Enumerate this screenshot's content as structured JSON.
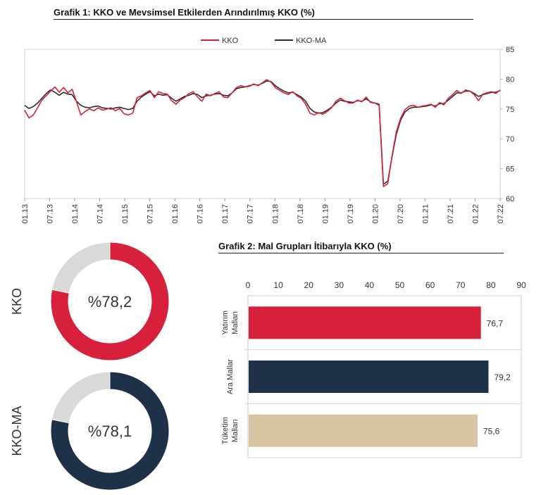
{
  "chart1_title": "Grafik 1: KKO ve Mevsimsel Etkilerden Arındırılmış KKO (%)",
  "chart2_title": "Grafik 2: Mal Grupları İtibarıyla KKO (%)",
  "colors": {
    "kko": "#d6203c",
    "kko_ma": "#2b2b2b",
    "navy": "#1f3148",
    "beige": "#d8c4a0",
    "gray": "#d9d9d9"
  },
  "chart_data": [
    {
      "type": "line",
      "title": "Grafik 1: KKO ve Mevsimsel Etkilerden Arındırılmış KKO (%)",
      "ylim": [
        60,
        85
      ],
      "yticks": [
        60,
        65,
        70,
        75,
        80,
        85
      ],
      "xtick_labels": [
        "01.13",
        "07.13",
        "01.14",
        "07.14",
        "01.15",
        "07.15",
        "01.16",
        "07.16",
        "01.17",
        "07.17",
        "01.18",
        "07.18",
        "01.19",
        "07.19",
        "01.20",
        "07.20",
        "01.21",
        "07.21",
        "01.22",
        "07.22"
      ],
      "legend_position": "top-center",
      "series": [
        {
          "name": "KKO",
          "color": "#d6203c",
          "values": [
            74.8,
            73.5,
            74.0,
            75.2,
            76.5,
            77.2,
            78.0,
            78.7,
            77.8,
            78.6,
            77.7,
            78.3,
            76.2,
            74.0,
            74.6,
            75.0,
            74.7,
            75.2,
            74.8,
            75.0,
            75.2,
            74.7,
            75.1,
            74.2,
            74.0,
            74.3,
            76.9,
            77.2,
            77.7,
            78.1,
            76.9,
            77.9,
            77.6,
            77.5,
            76.4,
            75.8,
            76.5,
            76.9,
            77.6,
            77.9,
            77.0,
            76.3,
            77.5,
            77.2,
            77.6,
            77.9,
            77.0,
            76.9,
            77.7,
            78.6,
            78.9,
            78.7,
            78.8,
            79.2,
            78.9,
            79.4,
            79.9,
            79.5,
            78.6,
            78.1,
            77.7,
            77.4,
            77.9,
            77.2,
            76.8,
            75.8,
            74.3,
            74.0,
            74.4,
            74.1,
            74.6,
            75.2,
            76.3,
            76.8,
            76.4,
            76.0,
            76.0,
            76.5,
            76.2,
            77.0,
            76.1,
            76.0,
            75.6,
            62.0,
            62.5,
            67.2,
            71.2,
            73.5,
            74.9,
            75.5,
            75.6,
            75.3,
            75.5,
            75.6,
            75.8,
            75.3,
            76.1,
            75.7,
            76.8,
            77.4,
            78.1,
            77.6,
            78.2,
            78.0,
            77.4,
            76.4,
            77.5,
            77.7,
            77.9,
            77.6,
            78.2
          ]
        },
        {
          "name": "KKO-MA",
          "color": "#2b2b2b",
          "values": [
            75.6,
            75.1,
            75.4,
            76.0,
            76.8,
            77.6,
            78.2,
            77.8,
            77.3,
            77.8,
            77.5,
            77.4,
            76.3,
            75.6,
            75.3,
            75.2,
            75.4,
            75.5,
            75.2,
            75.1,
            75.0,
            75.2,
            75.3,
            75.1,
            74.9,
            75.1,
            76.3,
            77.0,
            77.5,
            77.9,
            77.2,
            77.5,
            77.3,
            77.4,
            76.8,
            76.3,
            76.7,
            77.1,
            77.3,
            77.6,
            77.4,
            76.9,
            77.2,
            77.3,
            77.5,
            77.6,
            77.3,
            77.2,
            77.7,
            78.4,
            78.6,
            78.7,
            78.9,
            79.1,
            79.0,
            79.3,
            79.7,
            79.6,
            78.9,
            78.4,
            78.0,
            77.7,
            77.8,
            77.4,
            77.0,
            76.3,
            75.1,
            74.5,
            74.3,
            74.4,
            74.8,
            75.3,
            76.0,
            76.5,
            76.3,
            76.2,
            76.1,
            76.4,
            76.3,
            76.7,
            76.2,
            76.0,
            75.8,
            62.4,
            62.9,
            67.0,
            70.8,
            73.2,
            74.5,
            75.1,
            75.3,
            75.3,
            75.4,
            75.5,
            75.7,
            75.5,
            75.9,
            75.9,
            76.5,
            77.1,
            77.7,
            77.7,
            78.0,
            78.0,
            77.6,
            77.1,
            77.4,
            77.6,
            77.8,
            77.8,
            78.1
          ]
        }
      ]
    },
    {
      "type": "pie",
      "label": "KKO",
      "center_text": "%78,2",
      "slices": [
        {
          "value": 78.2,
          "color": "#d6203c"
        },
        {
          "value": 21.8,
          "color": "#d9d9d9"
        }
      ]
    },
    {
      "type": "pie",
      "label": "KKO-MA",
      "center_text": "%78,1",
      "slices": [
        {
          "value": 78.1,
          "color": "#1f3148"
        },
        {
          "value": 21.9,
          "color": "#d9d9d9"
        }
      ]
    },
    {
      "type": "bar",
      "orientation": "horizontal",
      "title": "Grafik 2: Mal Grupları İtibarıyla KKO (%)",
      "xlim": [
        0,
        90
      ],
      "xticks": [
        0,
        10,
        20,
        30,
        40,
        50,
        60,
        70,
        80,
        90
      ],
      "categories": [
        {
          "lines": [
            "Yatırım",
            "Malları"
          ]
        },
        {
          "lines": [
            "Ara Mallar"
          ]
        },
        {
          "lines": [
            "Tüketim",
            "Malları"
          ]
        }
      ],
      "values": [
        76.7,
        79.2,
        75.6
      ],
      "labels": [
        "76,7",
        "79,2",
        "75,6"
      ],
      "colors": [
        "#d6203c",
        "#1f3148",
        "#d8c4a0"
      ]
    }
  ]
}
